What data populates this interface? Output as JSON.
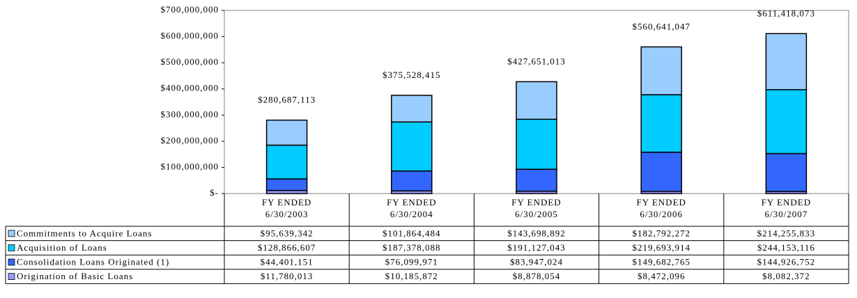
{
  "chart_data": {
    "type": "stacked_bar",
    "categories": [
      "FY ENDED\n6/30/2003",
      "FY ENDED\n6/30/2004",
      "FY ENDED\n6/30/2005",
      "FY ENDED\n6/30/2006",
      "FY ENDED\n6/30/2007"
    ],
    "series": [
      {
        "name": "Commitments to Acquire Loans",
        "color": "#99ccff",
        "values": [
          95639342,
          101864484,
          143698892,
          182792272,
          214255833
        ],
        "value_labels": [
          "$95,639,342",
          "$101,864,484",
          "$143,698,892",
          "$182,792,272",
          "$214,255,833"
        ]
      },
      {
        "name": "Acquisition of Loans",
        "color": "#00ccff",
        "values": [
          128866607,
          187378088,
          191127043,
          219693914,
          244153116
        ],
        "value_labels": [
          "$128,866,607",
          "$187,378,088",
          "$191,127,043",
          "$219,693,914",
          "$244,153,116"
        ]
      },
      {
        "name": "Consolidation Loans Originated (1)",
        "color": "#3366ff",
        "values": [
          44401151,
          76099971,
          83947024,
          149682765,
          144926752
        ],
        "value_labels": [
          "$44,401,151",
          "$76,099,971",
          "$83,947,024",
          "$149,682,765",
          "$144,926,752"
        ]
      },
      {
        "name": "Origination of Basic Loans",
        "color": "#9999ff",
        "values": [
          11780013,
          10185872,
          8878054,
          8472096,
          8082372
        ],
        "value_labels": [
          "$11,780,013",
          "$10,185,872",
          "$8,878,054",
          "$8,472,096",
          "$8,082,372"
        ]
      }
    ],
    "totals": {
      "values": [
        280687113,
        375528415,
        427651013,
        560641047,
        611418073
      ],
      "value_labels": [
        "$280,687,113",
        "$375,528,415",
        "$427,651,013",
        "$560,641,047",
        "$611,418,073"
      ]
    },
    "ylim": [
      0,
      700000000
    ],
    "yticks": [
      {
        "value": 0,
        "label": "$-"
      },
      {
        "value": 100000000,
        "label": "$100,000,000"
      },
      {
        "value": 200000000,
        "label": "$200,000,000"
      },
      {
        "value": 300000000,
        "label": "$300,000,000"
      },
      {
        "value": 400000000,
        "label": "$400,000,000"
      },
      {
        "value": 500000000,
        "label": "$500,000,000"
      },
      {
        "value": 600000000,
        "label": "$600,000,000"
      },
      {
        "value": 700000000,
        "label": "$700,000,000"
      }
    ],
    "grid": false,
    "stack_order": "bottom_up_from_last"
  }
}
